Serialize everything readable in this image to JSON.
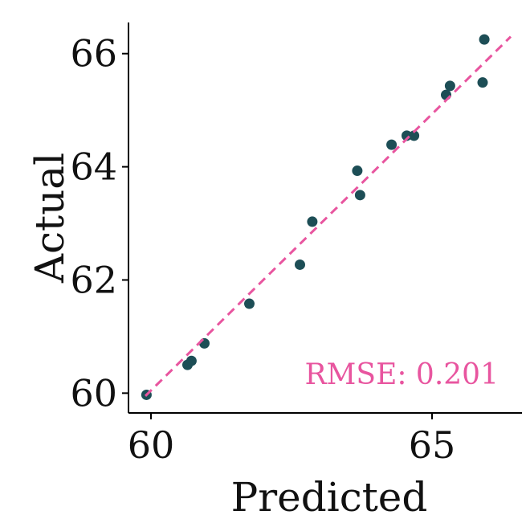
{
  "chart_data": {
    "type": "scatter",
    "title": "",
    "xlabel": "Predicted",
    "ylabel": "Actual",
    "xlim": [
      59.6,
      66.6
    ],
    "ylim": [
      59.65,
      66.55
    ],
    "xticks": [
      60,
      65
    ],
    "xtick_labels": [
      "60",
      "65"
    ],
    "yticks": [
      60,
      62,
      64,
      66
    ],
    "ytick_labels": [
      "60",
      "62",
      "64",
      "66"
    ],
    "grid": false,
    "point_color": "#1d4e56",
    "reference_line": {
      "style": "dashed",
      "color": "#e8559f",
      "from": [
        59.9,
        59.95
      ],
      "to": [
        66.4,
        66.3
      ]
    },
    "annotation": {
      "text": "RMSE: 0.201",
      "color": "#e8559f",
      "position": "bottom-right"
    },
    "points": [
      {
        "x": 59.92,
        "y": 59.97
      },
      {
        "x": 60.65,
        "y": 60.5
      },
      {
        "x": 60.72,
        "y": 60.57
      },
      {
        "x": 60.95,
        "y": 60.88
      },
      {
        "x": 61.75,
        "y": 61.58
      },
      {
        "x": 62.65,
        "y": 62.27
      },
      {
        "x": 62.87,
        "y": 63.03
      },
      {
        "x": 63.67,
        "y": 63.93
      },
      {
        "x": 63.72,
        "y": 63.5
      },
      {
        "x": 64.28,
        "y": 64.39
      },
      {
        "x": 64.55,
        "y": 64.55
      },
      {
        "x": 64.68,
        "y": 64.55
      },
      {
        "x": 65.25,
        "y": 65.27
      },
      {
        "x": 65.32,
        "y": 65.43
      },
      {
        "x": 65.9,
        "y": 65.49
      },
      {
        "x": 65.93,
        "y": 66.25
      }
    ]
  }
}
